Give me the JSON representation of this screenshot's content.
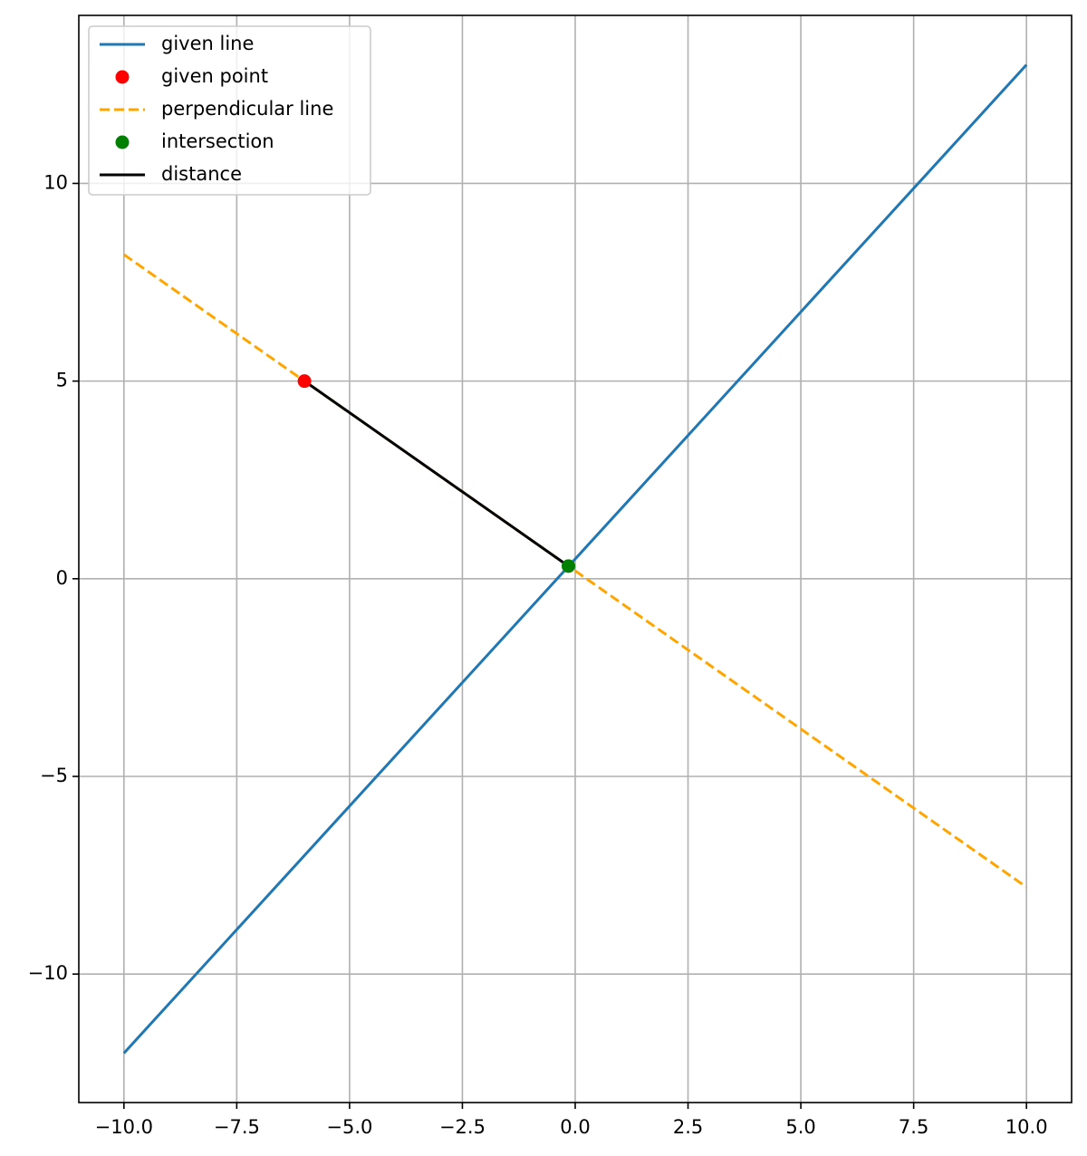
{
  "chart_data": {
    "type": "line",
    "xlim": [
      -11,
      11
    ],
    "ylim": [
      -13.25,
      14.25
    ],
    "xticks": [
      {
        "value": -10,
        "label": "−10.0"
      },
      {
        "value": -7.5,
        "label": "−7.5"
      },
      {
        "value": -5,
        "label": "−5.0"
      },
      {
        "value": -2.5,
        "label": "−2.5"
      },
      {
        "value": 0,
        "label": "0.0"
      },
      {
        "value": 2.5,
        "label": "2.5"
      },
      {
        "value": 5,
        "label": "5.0"
      },
      {
        "value": 7.5,
        "label": "7.5"
      },
      {
        "value": 10,
        "label": "10.0"
      }
    ],
    "yticks": [
      {
        "value": -10,
        "label": "−10"
      },
      {
        "value": -5,
        "label": "−5"
      },
      0,
      5,
      10
    ],
    "grid": true,
    "legend": "upper-left",
    "series": [
      {
        "name": "given line",
        "color": "#1f77b4",
        "style": "solid",
        "x": [
          -10,
          10
        ],
        "values": [
          -12,
          13
        ]
      },
      {
        "name": "given point",
        "color": "#ff0000",
        "style": "marker",
        "x": [
          -6
        ],
        "values": [
          5
        ]
      },
      {
        "name": "perpendicular line",
        "color": "#ffa500",
        "style": "dashed",
        "x": [
          -10,
          10
        ],
        "values": [
          8.2,
          -7.8
        ]
      },
      {
        "name": "intersection",
        "color": "#008000",
        "style": "marker",
        "x": [
          -0.15
        ],
        "values": [
          0.32
        ]
      },
      {
        "name": "distance",
        "color": "#000000",
        "style": "solid",
        "x": [
          -6,
          -0.15
        ],
        "values": [
          5,
          0.32
        ]
      }
    ]
  }
}
